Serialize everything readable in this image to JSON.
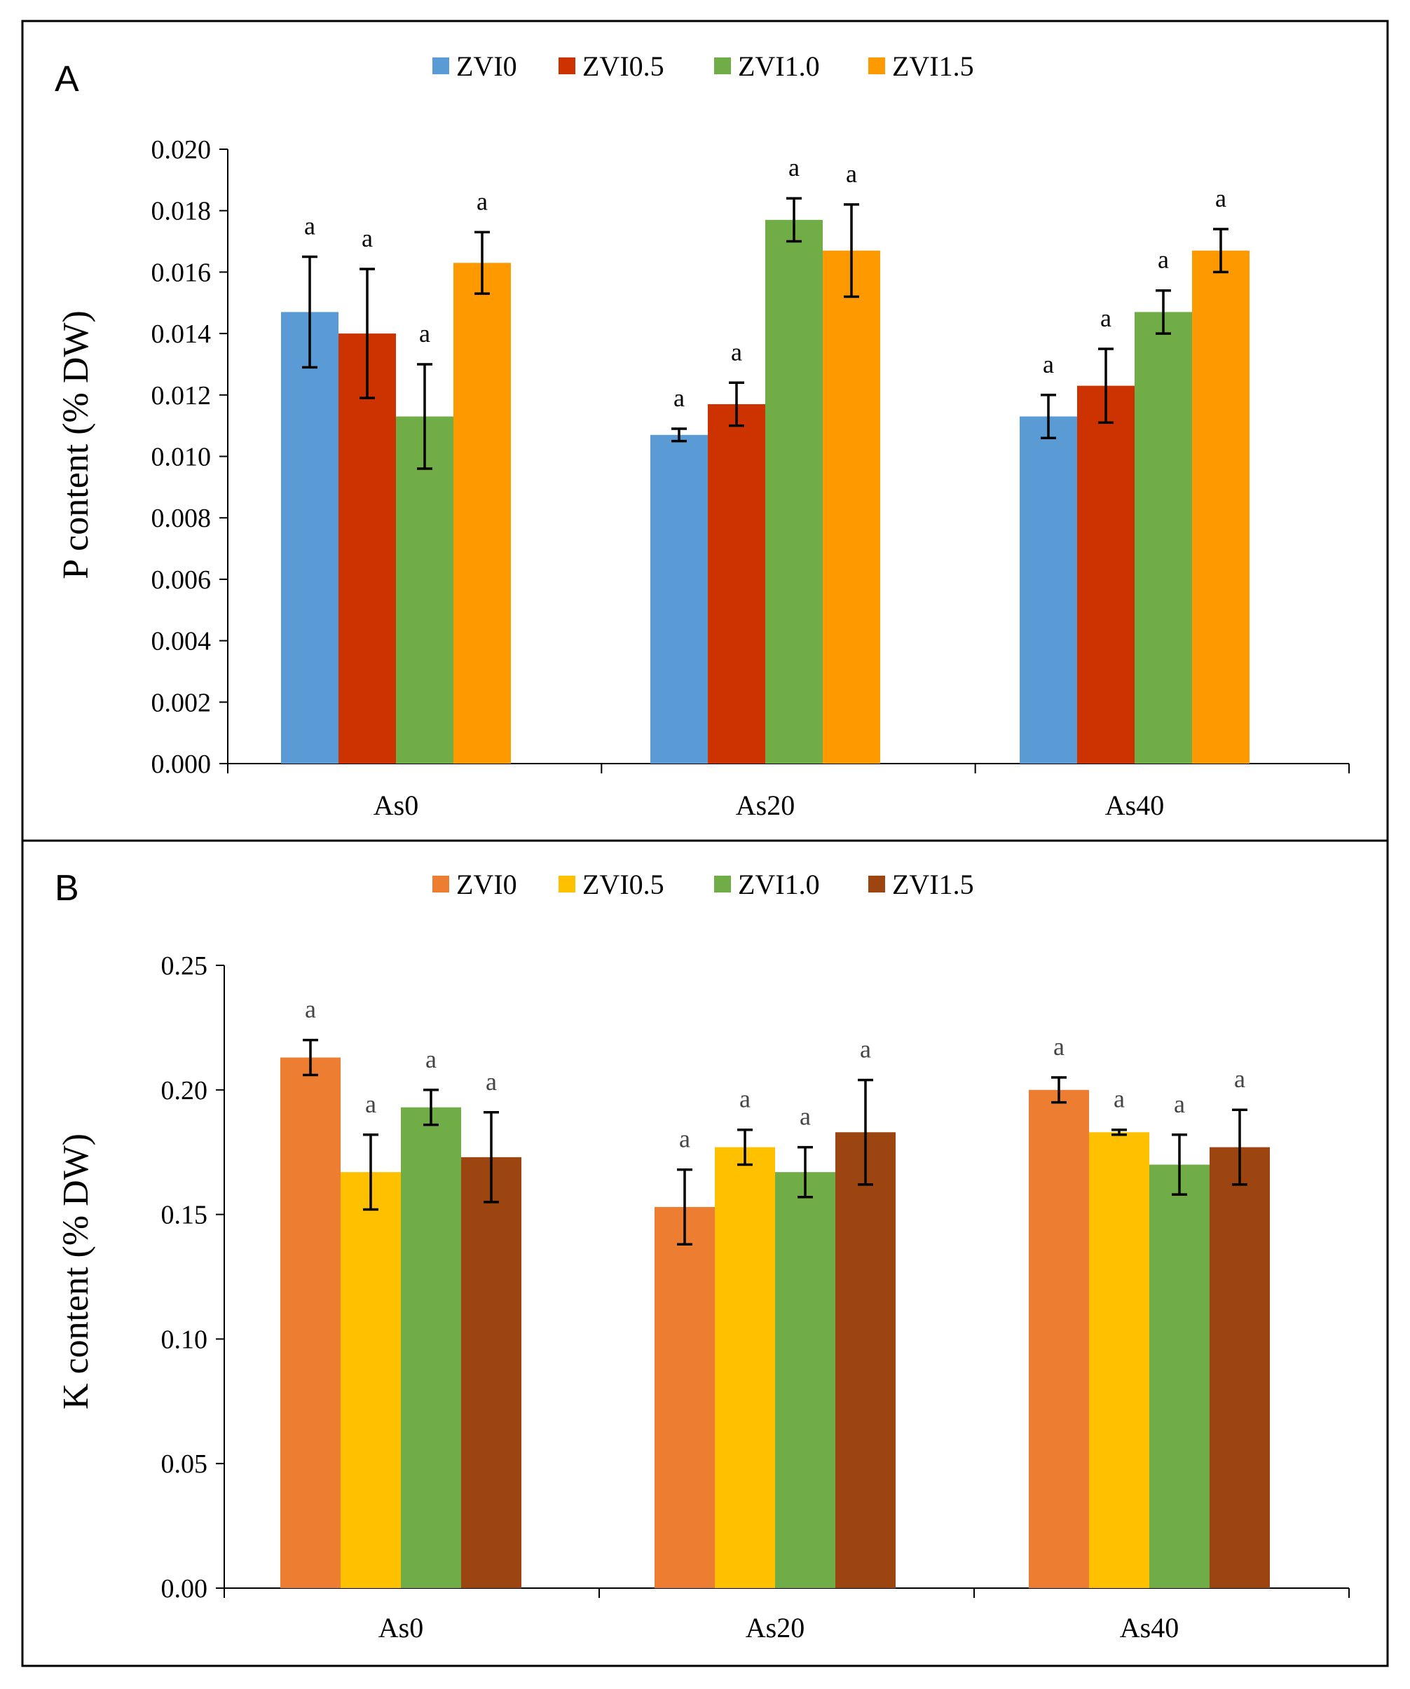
{
  "chart_data": [
    {
      "panel": "A",
      "type": "bar",
      "ylabel": "P content (% DW)",
      "xlabel": "",
      "ylim": [
        0,
        0.02
      ],
      "ytick_step": 0.002,
      "ytick_labels": [
        "0.000",
        "0.002",
        "0.004",
        "0.006",
        "0.008",
        "0.010",
        "0.012",
        "0.014",
        "0.016",
        "0.018",
        "0.020"
      ],
      "categories": [
        "As0",
        "As20",
        "As40"
      ],
      "legend_position": "top-center",
      "series": [
        {
          "name": "ZVI0",
          "color": "#5B9BD5",
          "values": [
            0.0147,
            0.0107,
            0.0113
          ],
          "errors": [
            0.0018,
            0.0002,
            0.0007
          ],
          "labels": [
            "a",
            "a",
            "a"
          ]
        },
        {
          "name": "ZVI0.5",
          "color": "#CC3300",
          "values": [
            0.014,
            0.0117,
            0.0123
          ],
          "errors": [
            0.0021,
            0.0007,
            0.0012
          ],
          "labels": [
            "a",
            "a",
            "a"
          ]
        },
        {
          "name": "ZVI1.0",
          "color": "#70AD47",
          "values": [
            0.0113,
            0.0177,
            0.0147
          ],
          "errors": [
            0.0017,
            0.0007,
            0.0007
          ],
          "labels": [
            "a",
            "a",
            "a"
          ]
        },
        {
          "name": "ZVI1.5",
          "color": "#FF9900",
          "values": [
            0.0163,
            0.0167,
            0.0167
          ],
          "errors": [
            0.001,
            0.0015,
            0.0007
          ],
          "labels": [
            "a",
            "a",
            "a"
          ]
        }
      ]
    },
    {
      "panel": "B",
      "type": "bar",
      "ylabel": "K content (% DW)",
      "xlabel": "",
      "ylim": [
        0,
        0.25
      ],
      "ytick_step": 0.05,
      "ytick_labels": [
        "0.00",
        "0.05",
        "0.10",
        "0.15",
        "0.20",
        "0.25"
      ],
      "categories": [
        "As0",
        "As20",
        "As40"
      ],
      "legend_position": "top-center",
      "series": [
        {
          "name": "ZVI0",
          "color": "#ED7D31",
          "values": [
            0.213,
            0.153,
            0.2
          ],
          "errors": [
            0.007,
            0.015,
            0.005
          ],
          "labels": [
            "a",
            "a",
            "a"
          ]
        },
        {
          "name": "ZVI0.5",
          "color": "#FFC000",
          "values": [
            0.167,
            0.177,
            0.183
          ],
          "errors": [
            0.015,
            0.007,
            0.001
          ],
          "labels": [
            "a",
            "a",
            "a"
          ]
        },
        {
          "name": "ZVI1.0",
          "color": "#70AD47",
          "values": [
            0.193,
            0.167,
            0.17
          ],
          "errors": [
            0.007,
            0.01,
            0.012
          ],
          "labels": [
            "a",
            "a",
            "a"
          ]
        },
        {
          "name": "ZVI1.5",
          "color": "#9C4510",
          "values": [
            0.173,
            0.183,
            0.177
          ],
          "errors": [
            0.018,
            0.021,
            0.015
          ],
          "labels": [
            "a",
            "a",
            "a"
          ]
        }
      ]
    }
  ]
}
